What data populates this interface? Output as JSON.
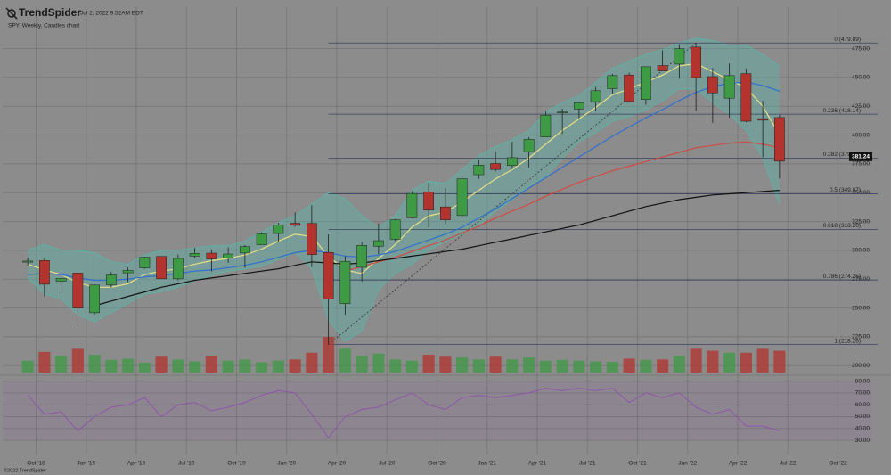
{
  "header": {
    "logo": "TrendSpider",
    "timestamp": "Jul 2, 2022 9:52AM EDT"
  },
  "chart_data": {
    "type": "candlestick",
    "title": "SPY, Weekly, Candles chart",
    "x": [
      "2018-09",
      "2018-10",
      "2018-11",
      "2018-12",
      "2019-01",
      "2019-02",
      "2019-03",
      "2019-04",
      "2019-05",
      "2019-06",
      "2019-07",
      "2019-08",
      "2019-09",
      "2019-10",
      "2019-11",
      "2019-12",
      "2020-01",
      "2020-02",
      "2020-03",
      "2020-04",
      "2020-05",
      "2020-06",
      "2020-07",
      "2020-08",
      "2020-09",
      "2020-10",
      "2020-11",
      "2020-12",
      "2021-01",
      "2021-02",
      "2021-03",
      "2021-04",
      "2021-05",
      "2021-06",
      "2021-07",
      "2021-08",
      "2021-09",
      "2021-10",
      "2021-11",
      "2021-12",
      "2022-01",
      "2022-02",
      "2022-03",
      "2022-04",
      "2022-05",
      "2022-06"
    ],
    "open": [
      289.8,
      291.2,
      273.2,
      280.3,
      245.9,
      270.2,
      280.5,
      284.7,
      294.7,
      275.3,
      295.0,
      297.6,
      293.2,
      297.7,
      304.9,
      314.6,
      323.5,
      323.4,
      298.2,
      253.8,
      285.3,
      303.6,
      309.6,
      328.3,
      350.4,
      337.7,
      330.2,
      365.6,
      375.3,
      373.7,
      385.6,
      398.4,
      419.4,
      422.6,
      428.9,
      440.3,
      452.1,
      430.9,
      460.3,
      461.6,
      476.3,
      450.7,
      432.0,
      453.3,
      414.3,
      415.2
    ],
    "high": [
      293.9,
      293.2,
      281.9,
      280.4,
      270.5,
      281.2,
      285.2,
      294.5,
      294.9,
      296.3,
      302.2,
      300.9,
      302.6,
      304.6,
      315.5,
      323.8,
      332.9,
      339.1,
      313.8,
      294.9,
      306.8,
      323.4,
      327.2,
      351.3,
      358.8,
      354.0,
      365.0,
      378.5,
      385.9,
      394.2,
      398.0,
      420.7,
      422.8,
      428.6,
      441.8,
      453.1,
      454.1,
      459.6,
      473.5,
      478.8,
      479.98,
      458.1,
      462.1,
      457.8,
      429.7,
      417.4
    ],
    "low": [
      286.7,
      259.9,
      263.1,
      233.8,
      244.0,
      267.8,
      272.4,
      284.0,
      275.3,
      273.9,
      293.2,
      281.7,
      289.3,
      284.8,
      304.7,
      307.1,
      320.4,
      285.5,
      218.3,
      243.9,
      272.9,
      296.7,
      308.2,
      327.7,
      319.8,
      322.6,
      327.3,
      362.0,
      368.3,
      370.4,
      371.9,
      398.2,
      401.1,
      414.7,
      421.0,
      436.1,
      428.8,
      426.4,
      455.6,
      448.9,
      420.8,
      410.6,
      415.1,
      411.2,
      380.5,
      362.2
    ],
    "close": [
      290.7,
      270.6,
      275.7,
      249.9,
      269.9,
      278.7,
      282.5,
      294.0,
      275.3,
      293.0,
      297.4,
      292.5,
      296.8,
      303.3,
      314.3,
      321.9,
      321.7,
      296.3,
      257.8,
      290.5,
      304.3,
      308.4,
      326.5,
      349.3,
      334.9,
      326.5,
      362.1,
      373.9,
      370.1,
      380.4,
      396.3,
      417.3,
      420.0,
      428.1,
      438.5,
      451.6,
      429.1,
      459.3,
      455.6,
      474.9,
      449.9,
      436.6,
      451.6,
      412.0,
      412.9,
      377.3
    ],
    "up_color": "#3f9a45",
    "down_color": "#b3332e",
    "xlim": [
      "2018-08",
      "2022-12"
    ],
    "xticks": [
      {
        "value": "2018-10",
        "label": "Oct '18"
      },
      {
        "value": "2019-01",
        "label": "Jan '19"
      },
      {
        "value": "2019-04",
        "label": "Apr '19"
      },
      {
        "value": "2019-07",
        "label": "Jul '19"
      },
      {
        "value": "2019-10",
        "label": "Oct '19"
      },
      {
        "value": "2020-01",
        "label": "Jan '20"
      },
      {
        "value": "2020-04",
        "label": "Apr '20"
      },
      {
        "value": "2020-07",
        "label": "Jul '20"
      },
      {
        "value": "2020-10",
        "label": "Oct '20"
      },
      {
        "value": "2021-01",
        "label": "Jan '21"
      },
      {
        "value": "2021-04",
        "label": "Apr '21"
      },
      {
        "value": "2021-07",
        "label": "Jul '21"
      },
      {
        "value": "2021-10",
        "label": "Oct '21"
      },
      {
        "value": "2022-01",
        "label": "Jan '22"
      },
      {
        "value": "2022-04",
        "label": "Apr '22"
      },
      {
        "value": "2022-07",
        "label": "Jul '22"
      },
      {
        "value": "2022-10",
        "label": "Oct '22"
      }
    ],
    "ylim": [
      194,
      511
    ],
    "yticks": [
      {
        "value": 200,
        "label": "200.00"
      },
      {
        "value": 225,
        "label": "225.00"
      },
      {
        "value": 250,
        "label": "250.00"
      },
      {
        "value": 275,
        "label": "275.00"
      },
      {
        "value": 300,
        "label": "300.00"
      },
      {
        "value": 325,
        "label": "325.00"
      },
      {
        "value": 350,
        "label": "350.00"
      },
      {
        "value": 375,
        "label": "375.00"
      },
      {
        "value": 400,
        "label": "400.00"
      },
      {
        "value": 425,
        "label": "425.00"
      },
      {
        "value": 450,
        "label": "450.00"
      },
      {
        "value": 475,
        "label": "475.00"
      }
    ],
    "grid": true,
    "last_price": 381.24,
    "bollinger": {
      "color": "#5fb0a4",
      "upper": [
        300,
        305,
        300,
        300,
        298,
        290,
        288,
        296,
        300,
        300,
        302,
        304,
        304,
        308,
        316,
        324,
        330,
        340,
        350,
        345,
        330,
        320,
        330,
        352,
        360,
        358,
        370,
        382,
        390,
        396,
        404,
        420,
        428,
        434,
        446,
        458,
        464,
        470,
        474,
        480,
        484,
        482,
        478,
        478,
        470,
        460
      ],
      "lower": [
        276,
        262,
        258,
        244,
        238,
        246,
        254,
        262,
        264,
        268,
        274,
        278,
        282,
        284,
        286,
        292,
        298,
        284,
        240,
        221,
        230,
        266,
        280,
        288,
        300,
        308,
        314,
        322,
        334,
        344,
        356,
        364,
        380,
        394,
        402,
        412,
        416,
        422,
        430,
        440,
        440,
        428,
        418,
        404,
        380,
        340
      ]
    },
    "lines": [
      {
        "color": "#e6df84",
        "values": [
          288,
          283,
          279,
          272,
          268,
          268,
          271,
          279,
          282,
          284,
          288,
          291,
          293,
          296,
          301,
          308,
          314,
          312,
          295,
          283,
          280,
          293,
          305,
          320,
          330,
          333,
          342,
          352,
          362,
          370,
          380,
          392,
          404,
          414,
          424,
          435,
          440,
          446,
          452,
          460,
          462,
          455,
          448,
          441,
          425,
          400
        ]
      },
      {
        "color": "#2f6fd0",
        "values": [
          279,
          280,
          279,
          276,
          274,
          274,
          275,
          277,
          278,
          280,
          282,
          283,
          285,
          287,
          290,
          294,
          298,
          300,
          298,
          295,
          294,
          296,
          299,
          304,
          309,
          314,
          320,
          328,
          336,
          345,
          354,
          363,
          372,
          381,
          390,
          399,
          407,
          415,
          422,
          430,
          437,
          442,
          445,
          446,
          443,
          438
        ]
      },
      {
        "color": "#d24a44",
        "values": [
          null,
          null,
          null,
          null,
          null,
          null,
          null,
          null,
          null,
          null,
          null,
          null,
          null,
          null,
          null,
          null,
          null,
          null,
          null,
          282,
          286,
          290,
          294,
          299,
          304,
          309,
          315,
          321,
          328,
          334,
          340,
          347,
          353,
          359,
          364,
          369,
          373,
          377,
          381,
          385,
          389,
          391,
          393,
          394,
          392,
          389
        ]
      },
      {
        "color": "#111111",
        "values": [
          null,
          null,
          null,
          null,
          252,
          256,
          260,
          264,
          268,
          271,
          274,
          276,
          278,
          280,
          282,
          284,
          287,
          290,
          289,
          288,
          289,
          291,
          293,
          295,
          297,
          299,
          301,
          304,
          307,
          310,
          313,
          316,
          319,
          322,
          326,
          330,
          334,
          338,
          341,
          344,
          346,
          348,
          349,
          350,
          351,
          352
        ]
      }
    ],
    "fib_color": "#3b4260",
    "fib_levels": [
      {
        "value": 479.89,
        "label": "0 (479.89)"
      },
      {
        "value": 418.14,
        "label": "0.236 (418.14)"
      },
      {
        "value": 379.95,
        "label": "0.382 (379.95)"
      },
      {
        "value": 349.07,
        "label": "0.5 (349.07)"
      },
      {
        "value": 318.2,
        "label": "0.618 (318.20)"
      },
      {
        "value": 274.25,
        "label": "0.786 (274.25)"
      },
      {
        "value": 218.26,
        "label": "1 (218.26)"
      }
    ],
    "volume": [
      300,
      520,
      420,
      600,
      450,
      320,
      350,
      250,
      400,
      330,
      280,
      420,
      300,
      330,
      260,
      300,
      330,
      500,
      900,
      600,
      420,
      480,
      330,
      300,
      450,
      400,
      380,
      330,
      400,
      330,
      380,
      300,
      320,
      300,
      280,
      270,
      350,
      320,
      330,
      420,
      600,
      550,
      500,
      500,
      600,
      550
    ],
    "rsi": {
      "color": "#8f55a8",
      "values": [
        68,
        52,
        54,
        38,
        50,
        58,
        60,
        66,
        50,
        60,
        62,
        55,
        58,
        62,
        68,
        72,
        70,
        52,
        32,
        50,
        56,
        58,
        64,
        70,
        60,
        56,
        66,
        68,
        66,
        68,
        70,
        74,
        72,
        74,
        72,
        74,
        62,
        70,
        66,
        70,
        58,
        52,
        56,
        42,
        42,
        38
      ],
      "ylim": [
        18,
        82
      ],
      "yticks": [
        {
          "value": 30,
          "label": "30.00"
        },
        {
          "value": 40,
          "label": "40.00"
        },
        {
          "value": 50,
          "label": "50.00"
        },
        {
          "value": 60,
          "label": "60.00"
        },
        {
          "value": 70,
          "label": "70.00"
        },
        {
          "value": 80,
          "label": "80.00"
        }
      ]
    }
  },
  "footer": "©2022 TrendSpider"
}
